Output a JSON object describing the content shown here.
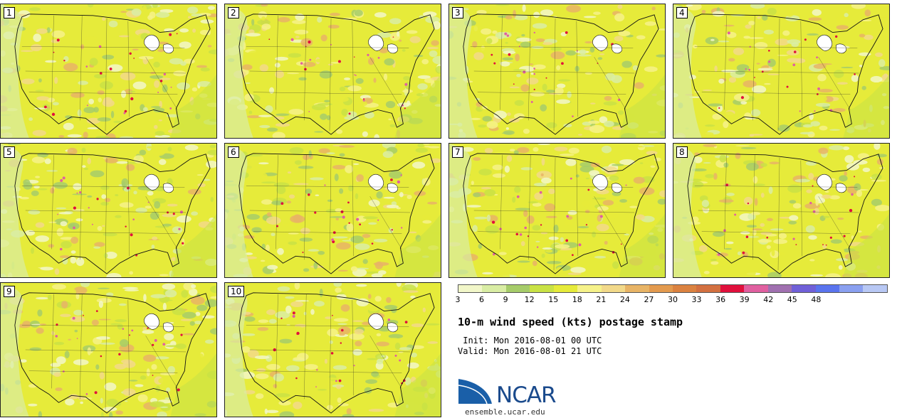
{
  "panels": [
    {
      "label": "1"
    },
    {
      "label": "2"
    },
    {
      "label": "3"
    },
    {
      "label": "4"
    },
    {
      "label": "5"
    },
    {
      "label": "6"
    },
    {
      "label": "7"
    },
    {
      "label": "8"
    },
    {
      "label": "9"
    },
    {
      "label": "10"
    }
  ],
  "colorbar": {
    "colors": [
      "#f2f7c9",
      "#d9eda4",
      "#a6cc6a",
      "#c9e245",
      "#e6eb3a",
      "#f6f28a",
      "#f2d98a",
      "#e8b466",
      "#e39a4e",
      "#db8240",
      "#d37040",
      "#e0103c",
      "#e060a0",
      "#a070b0",
      "#7060d8",
      "#5a74ee",
      "#8aa0f0",
      "#b8c8f4"
    ],
    "ticks": [
      "3",
      "6",
      "9",
      "12",
      "15",
      "18",
      "21",
      "24",
      "27",
      "30",
      "33",
      "36",
      "39",
      "42",
      "45",
      "48"
    ]
  },
  "title": "10-m wind speed (kts) postage stamp",
  "init": " Init: Mon 2016-08-01 00 UTC",
  "valid": "Valid: Mon 2016-08-01 21 UTC",
  "logo": {
    "text": "NCAR",
    "site": "ensemble.ucar.edu",
    "brand_color": "#1a4a8c"
  }
}
